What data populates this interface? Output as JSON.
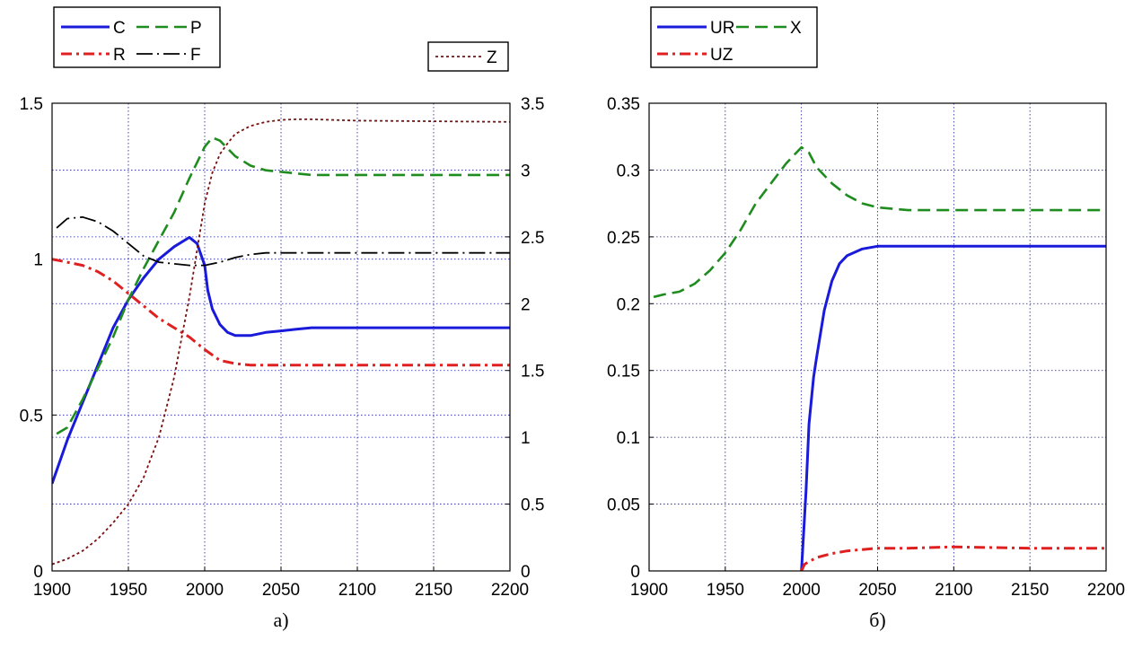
{
  "chart_data": [
    {
      "type": "line",
      "caption": "а)",
      "xlim": [
        1900,
        2200
      ],
      "xticks": [
        "1900",
        "1950",
        "2000",
        "2050",
        "2100",
        "2150",
        "2200"
      ],
      "ylim_left": [
        0,
        1.5
      ],
      "yticks_left": [
        "0",
        "0.5",
        "1",
        "1.5"
      ],
      "ylim_right": [
        0,
        3.5
      ],
      "yticks_right": [
        "0",
        "0.5",
        "1",
        "1.5",
        "2",
        "2.5",
        "3",
        "3.5"
      ],
      "grid": true,
      "legend_left": {
        "placement": "top-left",
        "entries": [
          "C",
          "P",
          "R",
          "F"
        ]
      },
      "legend_right": {
        "placement": "top-right",
        "entries": [
          "Z"
        ]
      },
      "series": [
        {
          "name": "C",
          "axis": "left",
          "color": "#1a1adb",
          "dash": "solid",
          "x": [
            1900,
            1910,
            1920,
            1930,
            1940,
            1950,
            1960,
            1970,
            1980,
            1990,
            1995,
            2000,
            2002,
            2005,
            2010,
            2015,
            2020,
            2030,
            2040,
            2050,
            2060,
            2070,
            2100,
            2150,
            2200
          ],
          "y": [
            0.28,
            0.42,
            0.54,
            0.66,
            0.78,
            0.87,
            0.94,
            1.0,
            1.04,
            1.07,
            1.05,
            0.98,
            0.9,
            0.84,
            0.79,
            0.765,
            0.755,
            0.755,
            0.765,
            0.77,
            0.775,
            0.78,
            0.78,
            0.78,
            0.78
          ]
        },
        {
          "name": "P",
          "axis": "left",
          "color": "#1e8c1e",
          "dash": "dashed",
          "x": [
            1903,
            1910,
            1920,
            1930,
            1940,
            1950,
            1960,
            1970,
            1980,
            1990,
            2000,
            2005,
            2010,
            2020,
            2030,
            2040,
            2050,
            2060,
            2070,
            2100,
            2150,
            2200
          ],
          "y": [
            0.44,
            0.46,
            0.55,
            0.65,
            0.75,
            0.87,
            0.97,
            1.06,
            1.15,
            1.26,
            1.36,
            1.39,
            1.38,
            1.33,
            1.3,
            1.285,
            1.28,
            1.275,
            1.27,
            1.27,
            1.27,
            1.27
          ]
        },
        {
          "name": "R",
          "axis": "left",
          "color": "#e02020",
          "dash": "dashdot",
          "x": [
            1900,
            1910,
            1920,
            1930,
            1940,
            1950,
            1960,
            1970,
            1980,
            1990,
            2000,
            2010,
            2020,
            2030,
            2050,
            2100,
            2150,
            2200
          ],
          "y": [
            1.0,
            0.99,
            0.98,
            0.96,
            0.93,
            0.89,
            0.85,
            0.81,
            0.78,
            0.75,
            0.71,
            0.675,
            0.665,
            0.66,
            0.66,
            0.66,
            0.66,
            0.66
          ]
        },
        {
          "name": "F",
          "axis": "left",
          "color": "#000000",
          "dash": "longdash",
          "x": [
            1903,
            1910,
            1920,
            1930,
            1940,
            1950,
            1960,
            1970,
            1980,
            1990,
            2000,
            2010,
            2020,
            2030,
            2040,
            2050,
            2100,
            2150,
            2200
          ],
          "y": [
            1.1,
            1.13,
            1.135,
            1.12,
            1.09,
            1.05,
            1.01,
            0.99,
            0.985,
            0.98,
            0.98,
            0.99,
            1.005,
            1.015,
            1.02,
            1.02,
            1.02,
            1.02,
            1.02
          ]
        },
        {
          "name": "Z",
          "axis": "right",
          "color": "#7a1010",
          "dash": "dotted",
          "x": [
            1900,
            1910,
            1920,
            1930,
            1940,
            1950,
            1960,
            1970,
            1980,
            1990,
            1995,
            2000,
            2005,
            2010,
            2015,
            2020,
            2030,
            2040,
            2050,
            2060,
            2070,
            2100,
            2150,
            2200
          ],
          "y": [
            0.05,
            0.09,
            0.15,
            0.24,
            0.36,
            0.5,
            0.7,
            1.0,
            1.45,
            2.05,
            2.4,
            2.75,
            2.98,
            3.12,
            3.2,
            3.27,
            3.33,
            3.36,
            3.375,
            3.38,
            3.38,
            3.37,
            3.365,
            3.36
          ]
        }
      ]
    },
    {
      "type": "line",
      "caption": "б)",
      "xlim": [
        1900,
        2200
      ],
      "xticks": [
        "1900",
        "1950",
        "2000",
        "2050",
        "2100",
        "2150",
        "2200"
      ],
      "ylim": [
        0,
        0.35
      ],
      "yticks": [
        "0",
        "0.05",
        "0.1",
        "0.15",
        "0.2",
        "0.25",
        "0.3",
        "0.35"
      ],
      "grid": true,
      "legend": {
        "placement": "top-left",
        "entries": [
          "UR",
          "X",
          "UZ"
        ]
      },
      "series": [
        {
          "name": "UR",
          "color": "#1a1adb",
          "dash": "solid",
          "x": [
            2000,
            2003,
            2005,
            2008,
            2010,
            2015,
            2020,
            2025,
            2030,
            2040,
            2050,
            2060,
            2070,
            2100,
            2150,
            2200
          ],
          "y": [
            0.0,
            0.06,
            0.11,
            0.145,
            0.16,
            0.195,
            0.217,
            0.23,
            0.236,
            0.241,
            0.243,
            0.243,
            0.243,
            0.243,
            0.243,
            0.243
          ]
        },
        {
          "name": "X",
          "color": "#1e8c1e",
          "dash": "dashed",
          "x": [
            1903,
            1910,
            1920,
            1930,
            1940,
            1950,
            1960,
            1970,
            1980,
            1990,
            2000,
            2005,
            2010,
            2020,
            2030,
            2040,
            2050,
            2060,
            2070,
            2100,
            2150,
            2200
          ],
          "y": [
            0.205,
            0.207,
            0.209,
            0.215,
            0.225,
            0.238,
            0.255,
            0.275,
            0.29,
            0.305,
            0.317,
            0.313,
            0.302,
            0.29,
            0.281,
            0.275,
            0.272,
            0.271,
            0.27,
            0.27,
            0.27,
            0.27
          ]
        },
        {
          "name": "UZ",
          "color": "#e02020",
          "dash": "dashdot",
          "x": [
            2000,
            2002,
            2005,
            2010,
            2020,
            2030,
            2040,
            2050,
            2070,
            2100,
            2150,
            2200
          ],
          "y": [
            0.0,
            0.005,
            0.007,
            0.01,
            0.013,
            0.015,
            0.016,
            0.017,
            0.017,
            0.018,
            0.017,
            0.017
          ]
        }
      ]
    }
  ]
}
